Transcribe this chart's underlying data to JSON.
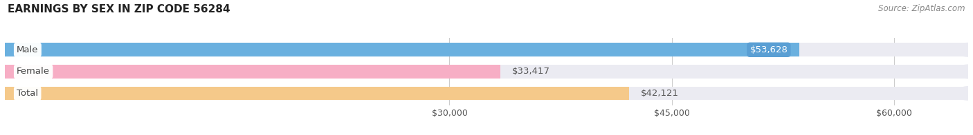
{
  "title": "EARNINGS BY SEX IN ZIP CODE 56284",
  "source": "Source: ZipAtlas.com",
  "categories": [
    "Male",
    "Female",
    "Total"
  ],
  "values": [
    53628,
    33417,
    42121
  ],
  "bar_colors": [
    "#6ab0df",
    "#f7aec5",
    "#f5c98a"
  ],
  "bar_bg_color": "#ebebf2",
  "label_value_texts": [
    "$53,628",
    "$33,417",
    "$42,121"
  ],
  "xmin": 0,
  "xmax": 65000,
  "xticks": [
    30000,
    45000,
    60000
  ],
  "xtick_labels": [
    "$30,000",
    "$45,000",
    "$60,000"
  ],
  "title_fontsize": 11,
  "source_fontsize": 8.5,
  "label_fontsize": 9.5,
  "value_fontsize": 9.5,
  "tick_fontsize": 9,
  "bg_color": "#ffffff",
  "bar_height": 0.62,
  "grid_color": "#cccccc",
  "male_value_bg": "#5a9fd4",
  "text_color": "#555555",
  "label_text_color": "#444444"
}
